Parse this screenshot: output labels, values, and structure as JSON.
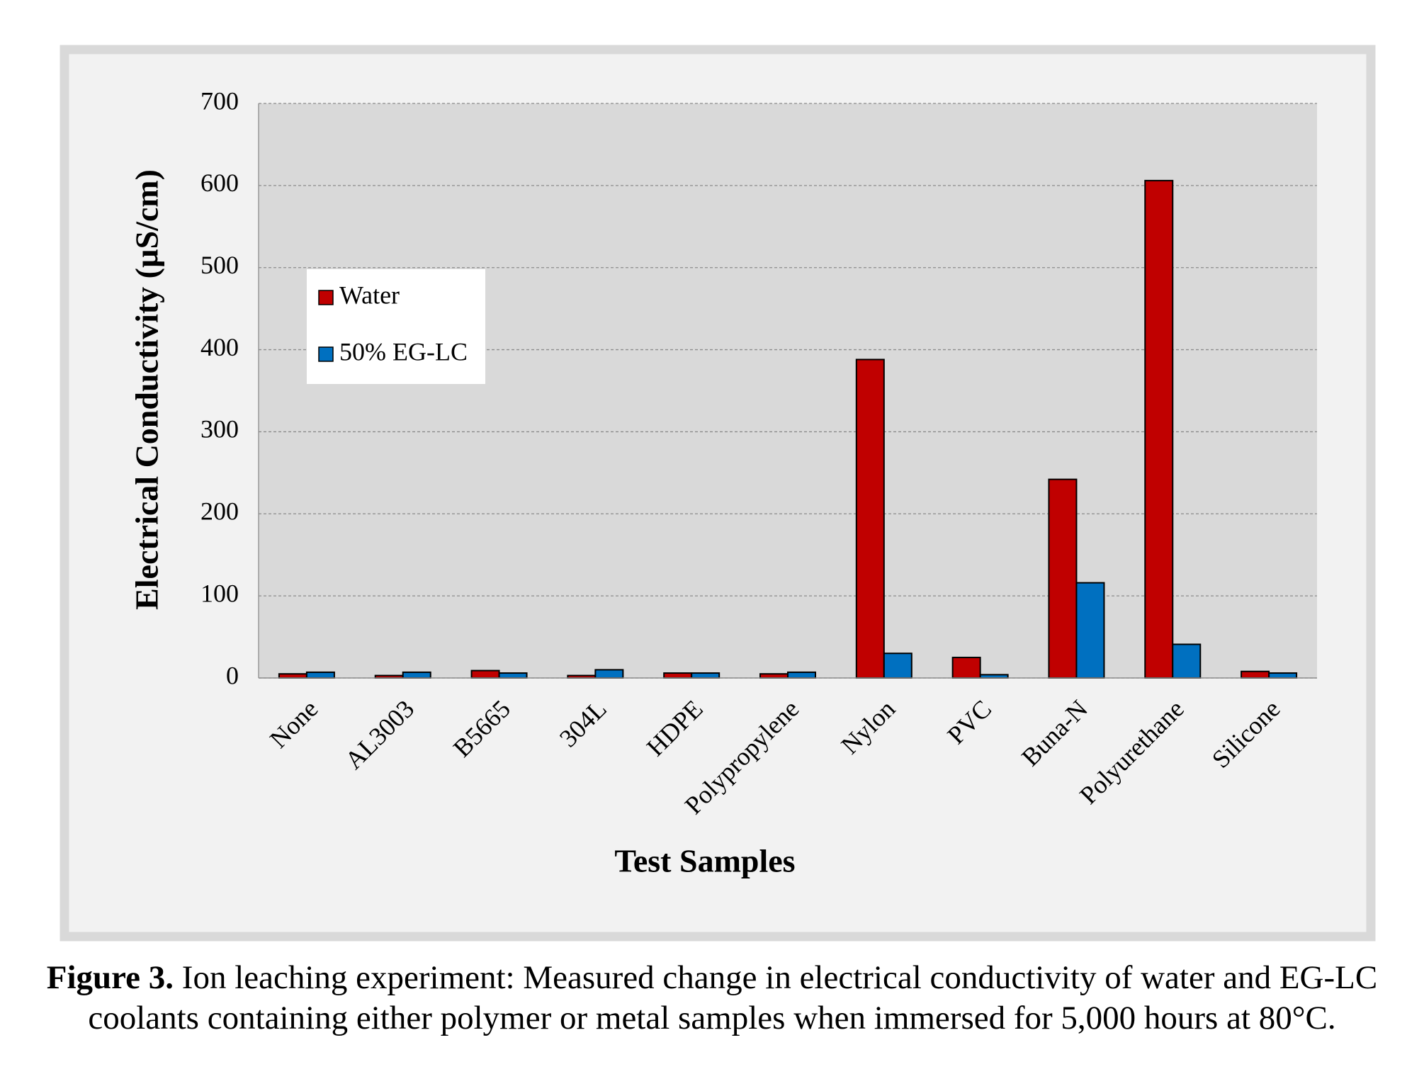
{
  "chart_data": {
    "type": "bar",
    "y_label": "Electrical Conductivity (µS/cm)",
    "x_label": "Test Samples",
    "categories": [
      "None",
      "AL3003",
      "B5665",
      "304L",
      "HDPE",
      "Polypropylene",
      "Nylon",
      "PVC",
      "Buna-N",
      "Polyurethane",
      "Silicone"
    ],
    "series": [
      {
        "name": "Water",
        "color": "#c00000",
        "values": [
          5,
          3,
          9,
          3,
          6,
          5,
          388,
          25,
          242,
          606,
          8
        ]
      },
      {
        "name": "50% EG-LC",
        "color": "#0070c0",
        "values": [
          7,
          7,
          6,
          10,
          6,
          7,
          30,
          4,
          116,
          41,
          6
        ]
      }
    ],
    "ylim": [
      0,
      700
    ],
    "yticks": [
      0,
      100,
      200,
      300,
      400,
      500,
      600,
      700
    ],
    "grid": true,
    "legend": "upper left"
  },
  "caption": {
    "label": "Figure 3.",
    "text": "Ion leaching experiment: Measured change in electrical conductivity of water and EG-LC coolants containing either polymer or metal samples when immersed for 5,000 hours at 80°C."
  }
}
